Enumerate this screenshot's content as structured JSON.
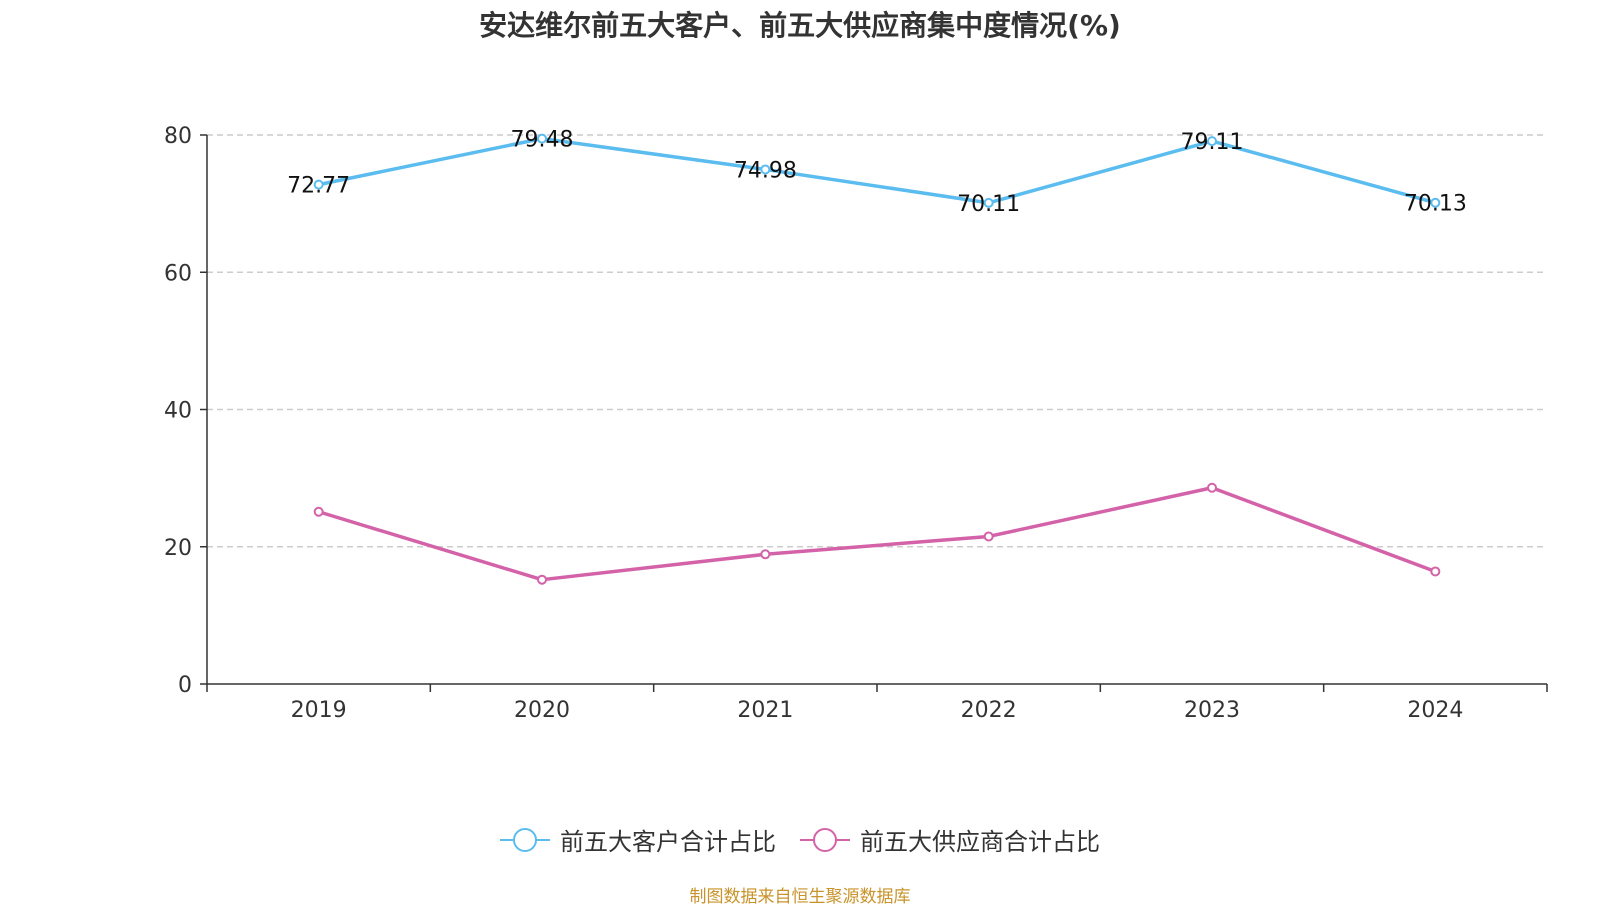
{
  "chart_data": {
    "type": "line",
    "title": "安达维尔前五大客户、前五大供应商集中度情况(%)",
    "categories": [
      "2019",
      "2020",
      "2021",
      "2022",
      "2023",
      "2024"
    ],
    "y_ticks": [
      "0",
      "20",
      "40",
      "60",
      "80"
    ],
    "ylim": [
      0,
      80
    ],
    "grid": "horizontal dashed",
    "legend_position": "bottom-center",
    "series": [
      {
        "name": "前五大客户合计占比",
        "color": "#5bbcf0",
        "values": [
          72.77,
          79.48,
          74.98,
          70.11,
          79.11,
          70.13
        ],
        "data_labels": [
          "72.77",
          "79.48",
          "74.98",
          "70.11",
          "79.11",
          "70.13"
        ]
      },
      {
        "name": "前五大供应商合计占比",
        "color": "#d462a8",
        "values": [
          25.1,
          15.2,
          18.9,
          21.5,
          28.6,
          16.4
        ],
        "data_labels": []
      }
    ]
  },
  "source_note": "制图数据来自恒生聚源数据库"
}
